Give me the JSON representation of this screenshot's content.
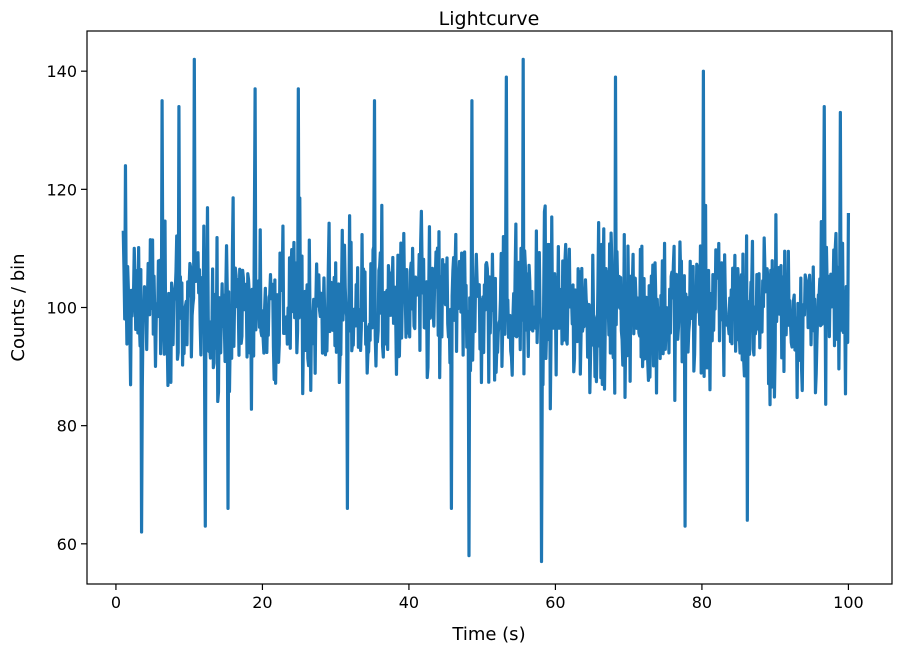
{
  "chart_data": {
    "type": "line",
    "title": "Lightcurve",
    "xlabel": "Time (s)",
    "ylabel": "Counts / bin",
    "xlim": [
      -3.95,
      105.95
    ],
    "ylim": [
      53.2,
      146.8
    ],
    "xticks": [
      0,
      20,
      40,
      60,
      80,
      100
    ],
    "yticks": [
      60,
      80,
      100,
      120,
      140
    ],
    "grid": false,
    "legend": "none",
    "series": [
      {
        "color": "#1f77b4",
        "description_values": {
          "x_start": 1.0,
          "x_end": 100.0,
          "typical_low": 80,
          "typical_high": 122,
          "mean": 100
        },
        "notable_points": [
          {
            "x": 1.0,
            "y": 113
          },
          {
            "x": 1.3,
            "y": 124
          },
          {
            "x": 3.5,
            "y": 62
          },
          {
            "x": 6.3,
            "y": 135
          },
          {
            "x": 8.6,
            "y": 134
          },
          {
            "x": 10.7,
            "y": 142
          },
          {
            "x": 12.2,
            "y": 63
          },
          {
            "x": 15.3,
            "y": 66
          },
          {
            "x": 19.0,
            "y": 137
          },
          {
            "x": 24.9,
            "y": 137
          },
          {
            "x": 31.6,
            "y": 66
          },
          {
            "x": 35.3,
            "y": 135
          },
          {
            "x": 45.8,
            "y": 66
          },
          {
            "x": 48.2,
            "y": 58
          },
          {
            "x": 48.6,
            "y": 135
          },
          {
            "x": 53.3,
            "y": 139
          },
          {
            "x": 55.6,
            "y": 142
          },
          {
            "x": 58.1,
            "y": 57
          },
          {
            "x": 68.2,
            "y": 139
          },
          {
            "x": 77.7,
            "y": 63
          },
          {
            "x": 80.2,
            "y": 140
          },
          {
            "x": 86.2,
            "y": 64
          },
          {
            "x": 96.7,
            "y": 134
          },
          {
            "x": 98.9,
            "y": 133
          },
          {
            "x": 100.0,
            "y": 116
          }
        ]
      }
    ]
  }
}
